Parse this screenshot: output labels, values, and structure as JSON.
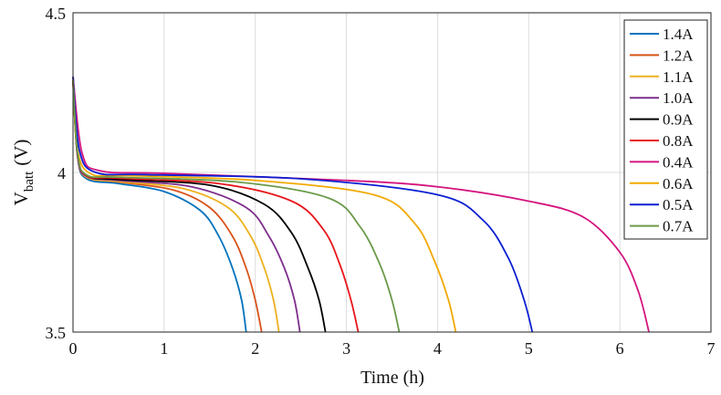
{
  "chart_data": {
    "type": "line",
    "title": "",
    "xlabel": "Time (h)",
    "ylabel_main": "V",
    "ylabel_sub": "batt",
    "ylabel_unit": "(V)",
    "xlim": [
      0,
      7
    ],
    "ylim": [
      3.5,
      4.5
    ],
    "xticks": [
      0,
      1,
      2,
      3,
      4,
      5,
      6,
      7
    ],
    "yticks": [
      3.5,
      4,
      4.5
    ],
    "xtick_labels": [
      "0",
      "1",
      "2",
      "3",
      "4",
      "5",
      "6",
      "7"
    ],
    "ytick_labels": [
      "3.5",
      "4",
      "4.5"
    ],
    "grid": true,
    "legend_position": "top-right",
    "series": [
      {
        "name": "1.4A",
        "color": "#0072BD",
        "points": [
          [
            0,
            4.3
          ],
          [
            0.05,
            4.05
          ],
          [
            0.15,
            3.98
          ],
          [
            0.5,
            3.965
          ],
          [
            1.0,
            3.94
          ],
          [
            1.4,
            3.88
          ],
          [
            1.6,
            3.8
          ],
          [
            1.75,
            3.7
          ],
          [
            1.85,
            3.6
          ],
          [
            1.9,
            3.5
          ]
        ]
      },
      {
        "name": "1.2A",
        "color": "#D95319",
        "points": [
          [
            0,
            4.28
          ],
          [
            0.05,
            4.05
          ],
          [
            0.15,
            3.985
          ],
          [
            0.5,
            3.97
          ],
          [
            1.1,
            3.945
          ],
          [
            1.5,
            3.89
          ],
          [
            1.75,
            3.8
          ],
          [
            1.9,
            3.7
          ],
          [
            2.0,
            3.6
          ],
          [
            2.07,
            3.5
          ]
        ]
      },
      {
        "name": "1.1A",
        "color": "#EDB120",
        "points": [
          [
            0,
            4.28
          ],
          [
            0.05,
            4.05
          ],
          [
            0.15,
            3.985
          ],
          [
            0.5,
            3.972
          ],
          [
            1.2,
            3.95
          ],
          [
            1.7,
            3.89
          ],
          [
            1.95,
            3.8
          ],
          [
            2.1,
            3.7
          ],
          [
            2.2,
            3.6
          ],
          [
            2.26,
            3.5
          ]
        ]
      },
      {
        "name": "1.0A",
        "color": "#7E2F8E",
        "points": [
          [
            0,
            4.29
          ],
          [
            0.05,
            4.05
          ],
          [
            0.15,
            3.988
          ],
          [
            0.5,
            3.975
          ],
          [
            1.3,
            3.955
          ],
          [
            1.9,
            3.89
          ],
          [
            2.15,
            3.8
          ],
          [
            2.32,
            3.7
          ],
          [
            2.43,
            3.6
          ],
          [
            2.49,
            3.5
          ]
        ]
      },
      {
        "name": "0.9A",
        "color": "#000000",
        "points": [
          [
            0,
            4.29
          ],
          [
            0.05,
            4.06
          ],
          [
            0.15,
            3.99
          ],
          [
            0.5,
            3.978
          ],
          [
            1.5,
            3.96
          ],
          [
            2.1,
            3.9
          ],
          [
            2.4,
            3.81
          ],
          [
            2.58,
            3.7
          ],
          [
            2.7,
            3.6
          ],
          [
            2.77,
            3.5
          ]
        ]
      },
      {
        "name": "0.8A",
        "color": "#E8161B",
        "points": [
          [
            0,
            4.29
          ],
          [
            0.05,
            4.06
          ],
          [
            0.15,
            3.99
          ],
          [
            0.5,
            3.982
          ],
          [
            1.6,
            3.965
          ],
          [
            2.4,
            3.91
          ],
          [
            2.75,
            3.82
          ],
          [
            2.93,
            3.71
          ],
          [
            3.05,
            3.6
          ],
          [
            3.13,
            3.5
          ]
        ]
      },
      {
        "name": "0.4A",
        "color": "#D4147F",
        "points": [
          [
            0,
            4.3
          ],
          [
            0.1,
            4.06
          ],
          [
            0.3,
            4.005
          ],
          [
            1.0,
            3.997
          ],
          [
            3.0,
            3.975
          ],
          [
            4.0,
            3.955
          ],
          [
            5.0,
            3.91
          ],
          [
            5.6,
            3.86
          ],
          [
            6.0,
            3.75
          ],
          [
            6.2,
            3.63
          ],
          [
            6.32,
            3.5
          ]
        ]
      },
      {
        "name": "0.6A",
        "color": "#F2A900",
        "points": [
          [
            0,
            4.3
          ],
          [
            0.05,
            4.07
          ],
          [
            0.2,
            3.995
          ],
          [
            0.6,
            3.99
          ],
          [
            2.0,
            3.975
          ],
          [
            3.3,
            3.93
          ],
          [
            3.75,
            3.84
          ],
          [
            3.97,
            3.72
          ],
          [
            4.12,
            3.6
          ],
          [
            4.2,
            3.5
          ]
        ]
      },
      {
        "name": "0.5A",
        "color": "#0A1ED2",
        "points": [
          [
            0,
            4.3
          ],
          [
            0.07,
            4.07
          ],
          [
            0.25,
            4.0
          ],
          [
            0.8,
            3.993
          ],
          [
            2.5,
            3.98
          ],
          [
            4.0,
            3.93
          ],
          [
            4.5,
            3.85
          ],
          [
            4.78,
            3.73
          ],
          [
            4.95,
            3.6
          ],
          [
            5.04,
            3.5
          ]
        ]
      },
      {
        "name": "0.7A",
        "color": "#6B9A4A",
        "points": [
          [
            0,
            4.29
          ],
          [
            0.05,
            4.06
          ],
          [
            0.15,
            3.992
          ],
          [
            0.5,
            3.985
          ],
          [
            1.8,
            3.97
          ],
          [
            2.8,
            3.92
          ],
          [
            3.15,
            3.83
          ],
          [
            3.37,
            3.71
          ],
          [
            3.5,
            3.6
          ],
          [
            3.58,
            3.5
          ]
        ]
      }
    ]
  }
}
